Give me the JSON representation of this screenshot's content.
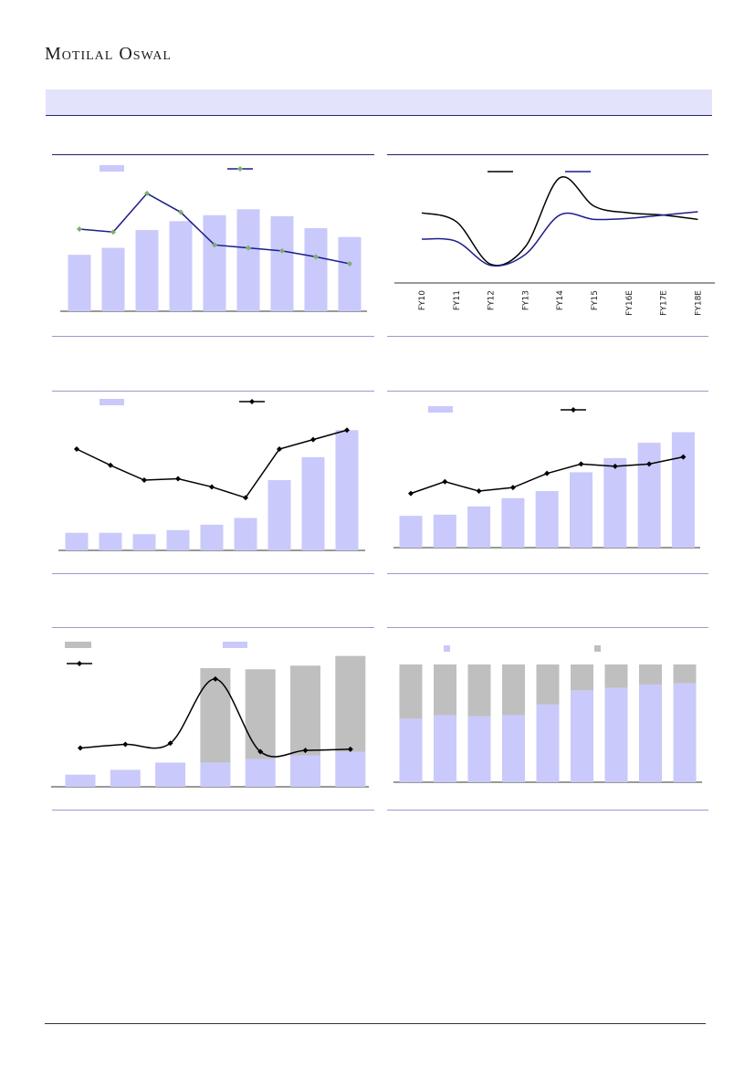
{
  "header": {
    "brand": "Motilal Oswal"
  },
  "colors": {
    "bar": "#c9c9fb",
    "bar_grey": "#bfbfbf",
    "line_navy": "#1c1c8c",
    "line_black": "#000000",
    "marker_green": "#7fae6e"
  },
  "chart_data": [
    {
      "id": "top-left",
      "type": "bar",
      "values": [
        57,
        64,
        82,
        91,
        97,
        103,
        96,
        84,
        75
      ],
      "line": [
        83,
        80,
        119,
        100,
        67,
        64,
        61,
        55,
        48
      ],
      "ylim": [
        0,
        130
      ]
    },
    {
      "id": "top-right",
      "type": "line",
      "categories": [
        "FY10",
        "FY11",
        "FY12",
        "FY13",
        "FY14",
        "FY15",
        "FY16E",
        "FY17E",
        "FY18E"
      ],
      "series": [
        {
          "values": [
            64,
            56,
            17,
            33,
            96,
            70,
            64,
            62,
            58
          ]
        },
        {
          "values": [
            40,
            38,
            16,
            26,
            62,
            58,
            59,
            62,
            65
          ]
        }
      ],
      "ylim": [
        0,
        100
      ]
    },
    {
      "id": "mid-left",
      "type": "bar",
      "values": [
        13,
        13,
        12,
        15,
        19,
        24,
        52,
        69,
        89
      ],
      "line": [
        75,
        63,
        52,
        53,
        47,
        39,
        75,
        82,
        89
      ],
      "ylim": [
        0,
        100
      ]
    },
    {
      "id": "mid-right",
      "type": "bar",
      "values": [
        27,
        28,
        35,
        42,
        48,
        64,
        76,
        89,
        98
      ],
      "line": [
        46,
        56,
        48,
        51,
        63,
        71,
        69,
        71,
        77
      ],
      "ylim": [
        0,
        110
      ]
    },
    {
      "id": "bottom-left",
      "type": "bar",
      "values": [
        10,
        14,
        20,
        20,
        23,
        26,
        29
      ],
      "stack": [
        0,
        0,
        0,
        78,
        74,
        74,
        79
      ],
      "line": [
        32,
        35,
        36,
        89,
        29,
        30,
        31
      ],
      "ylim": [
        0,
        110
      ]
    },
    {
      "id": "bottom-right",
      "type": "bar",
      "values": [
        54,
        57,
        56,
        57,
        66,
        78,
        80,
        83,
        84
      ],
      "stack": [
        46,
        43,
        44,
        43,
        34,
        22,
        20,
        17,
        16
      ],
      "ylim": [
        0,
        100
      ]
    }
  ]
}
